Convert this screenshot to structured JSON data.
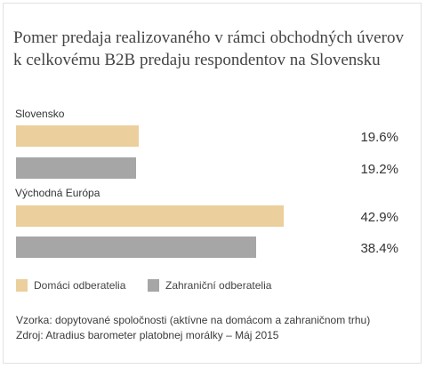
{
  "chart_data": {
    "type": "bar",
    "orientation": "horizontal",
    "title": "Pomer predaja realizovaného v rámci obchodných úverov k celkovému B2B predaju respondentov na Slovensku",
    "categories": [
      "Slovensko",
      "Východná Európa"
    ],
    "series": [
      {
        "name": "Domáci odberatelia",
        "values": [
          19.6,
          42.9
        ],
        "labels": [
          "19.6%",
          "42.9%"
        ]
      },
      {
        "name": "Zahraniční odberatelia",
        "values": [
          19.2,
          38.4
        ],
        "labels": [
          "19.2%",
          "38.4%"
        ]
      }
    ],
    "xlim": [
      0,
      100
    ],
    "grid": false,
    "legend_placement": "bottom",
    "colors": {
      "series0": "#ebcf9c",
      "series1": "#a6a6a6"
    }
  },
  "notes": {
    "sample": "Vzorka: dopytované spoločnosti (aktívne na domácom a zahraničnom trhu)",
    "source": "Zdroj: Atradius barometer platobnej morálky – Máj 2015"
  }
}
